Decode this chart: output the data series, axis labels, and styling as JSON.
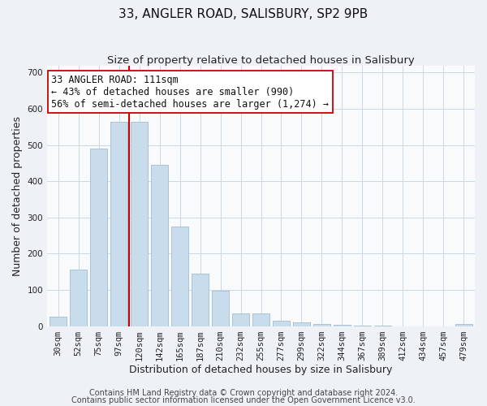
{
  "title": "33, ANGLER ROAD, SALISBURY, SP2 9PB",
  "subtitle": "Size of property relative to detached houses in Salisbury",
  "xlabel": "Distribution of detached houses by size in Salisbury",
  "ylabel": "Number of detached properties",
  "bar_labels": [
    "30sqm",
    "52sqm",
    "75sqm",
    "97sqm",
    "120sqm",
    "142sqm",
    "165sqm",
    "187sqm",
    "210sqm",
    "232sqm",
    "255sqm",
    "277sqm",
    "299sqm",
    "322sqm",
    "344sqm",
    "367sqm",
    "389sqm",
    "412sqm",
    "434sqm",
    "457sqm",
    "479sqm"
  ],
  "bar_values": [
    25,
    155,
    490,
    565,
    565,
    445,
    275,
    145,
    98,
    36,
    35,
    14,
    10,
    5,
    4,
    2,
    1,
    0,
    0,
    0,
    5
  ],
  "bar_color": "#c8dcec",
  "bar_edge_color": "#a0bcd4",
  "red_line_after_index": 3,
  "marker_color": "#cc0000",
  "annotation_line1": "33 ANGLER ROAD: 111sqm",
  "annotation_line2": "← 43% of detached houses are smaller (990)",
  "annotation_line3": "56% of semi-detached houses are larger (1,274) →",
  "annotation_box_color": "#ffffff",
  "annotation_box_edge": "#cc0000",
  "ylim": [
    0,
    720
  ],
  "yticks": [
    0,
    100,
    200,
    300,
    400,
    500,
    600,
    700
  ],
  "footer_line1": "Contains HM Land Registry data © Crown copyright and database right 2024.",
  "footer_line2": "Contains public sector information licensed under the Open Government Licence v3.0.",
  "background_color": "#eef2f7",
  "plot_bg_color": "#f8fafc",
  "grid_color": "#c8d8e8",
  "title_fontsize": 11,
  "subtitle_fontsize": 9.5,
  "axis_label_fontsize": 9,
  "tick_fontsize": 7.5,
  "annotation_fontsize": 8.5,
  "footer_fontsize": 7
}
